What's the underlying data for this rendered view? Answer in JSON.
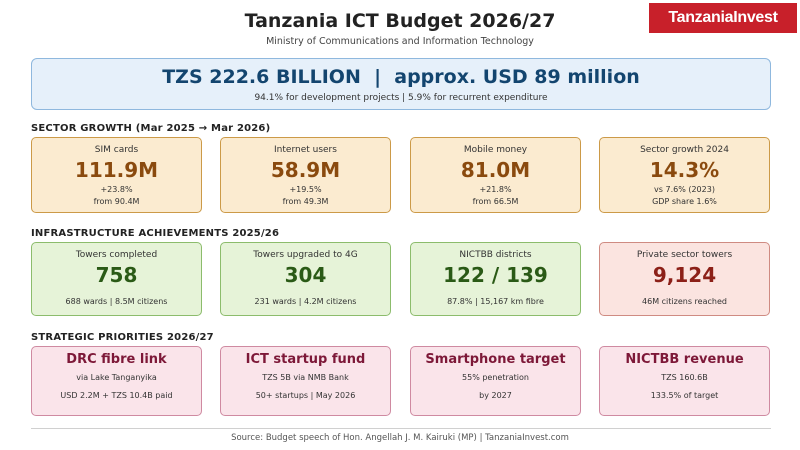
{
  "header": {
    "title": "Tanzania ICT Budget 2026/27",
    "subtitle": "Ministry of Communications and Information Technology",
    "logo_text": "TanzaniaInvest"
  },
  "banner": {
    "main": "TZS 222.6 BILLION  |  approx. USD 89 million",
    "sub": "94.1% for development projects  |  5.9% for recurrent expenditure"
  },
  "sections": {
    "growth": "SECTOR GROWTH (Mar 2025 → Mar 2026)",
    "infra": "INFRASTRUCTURE ACHIEVEMENTS 2025/26",
    "priorities": "STRATEGIC PRIORITIES 2026/27"
  },
  "growth_cards": [
    {
      "label": "SIM cards",
      "value": "111.9M",
      "note1": "+23.8%",
      "note2": "from 90.4M"
    },
    {
      "label": "Internet users",
      "value": "58.9M",
      "note1": "+19.5%",
      "note2": "from 49.3M"
    },
    {
      "label": "Mobile money",
      "value": "81.0M",
      "note1": "+21.8%",
      "note2": "from 66.5M"
    },
    {
      "label": "Sector growth 2024",
      "value": "14.3%",
      "note1": "vs 7.6% (2023)",
      "note2": "GDP share 1.6%"
    }
  ],
  "infra_cards": [
    {
      "label": "Towers completed",
      "value": "758",
      "note": "688 wards | 8.5M citizens"
    },
    {
      "label": "Towers upgraded to 4G",
      "value": "304",
      "note": "231 wards | 4.2M citizens"
    },
    {
      "label": "NICTBB districts",
      "value": "122 / 139",
      "note": "87.8% | 15,167 km fibre"
    },
    {
      "label": "Private sector towers",
      "value": "9,124",
      "note": "46M citizens reached"
    }
  ],
  "priority_cards": [
    {
      "title": "DRC fibre link",
      "line1": "via Lake Tanganyika",
      "line2": "USD 2.2M + TZS 10.4B paid"
    },
    {
      "title": "ICT startup fund",
      "line1": "TZS 5B via NMB Bank",
      "line2": "50+ startups | May 2026"
    },
    {
      "title": "Smartphone target",
      "line1": "55% penetration",
      "line2": "by 2027"
    },
    {
      "title": "NICTBB revenue",
      "line1": "TZS 160.6B",
      "line2": "133.5% of target"
    }
  ],
  "footer": "Source: Budget speech of Hon. Angellah J. M. Kairuki (MP)  |  TanzaniaInvest.com",
  "colors": {
    "brand_red": "#c8202a",
    "banner_text": "#13456f",
    "growth_accent": "#8a4a0e",
    "infra_accent": "#2a5a16",
    "alert_accent": "#8c2018",
    "priority_accent": "#7d1838"
  }
}
